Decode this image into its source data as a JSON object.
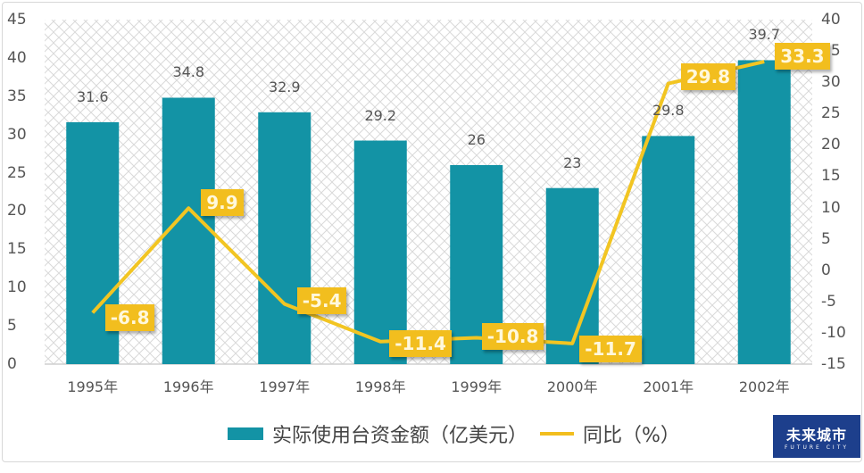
{
  "chart_data": {
    "type": "bar+line",
    "title": "",
    "categories": [
      "1995年",
      "1996年",
      "1997年",
      "1998年",
      "1999年",
      "2000年",
      "2001年",
      "2002年"
    ],
    "series": [
      {
        "name": "实际使用台资金额（亿美元）",
        "type": "bar",
        "axis": "left",
        "color": "#1393a5",
        "values": [
          31.6,
          34.8,
          32.9,
          29.2,
          26,
          23,
          29.8,
          39.7
        ]
      },
      {
        "name": "同比（%）",
        "type": "line",
        "axis": "right",
        "color": "#f2be1e",
        "values": [
          -6.8,
          9.9,
          -5.4,
          -11.4,
          -10.8,
          -11.7,
          29.8,
          33.3
        ]
      }
    ],
    "y_left": {
      "ticks": [
        "0",
        "5",
        "10",
        "15",
        "20",
        "25",
        "30",
        "35",
        "40",
        "45"
      ],
      "ylim": [
        0,
        45
      ]
    },
    "y_right": {
      "ticks": [
        "-15",
        "-10",
        "-5",
        "0",
        "5",
        "10",
        "15",
        "20",
        "25",
        "30",
        "35",
        "40"
      ],
      "ylim": [
        -15,
        40
      ]
    },
    "xlabel": "",
    "ylabel": "",
    "grid": false,
    "background_pattern": "crosshatch",
    "legend_position": "bottom"
  },
  "bar_labels": [
    "31.6",
    "34.8",
    "32.9",
    "29.2",
    "26",
    "23",
    "29.8",
    "39.7"
  ],
  "line_labels": [
    "-6.8",
    "9.9",
    "-5.4",
    "-11.4",
    "-10.8",
    "-11.7",
    "29.8",
    "33.3"
  ],
  "legend": {
    "bar": "实际使用台资金额（亿美元）",
    "line": "同比（%）"
  },
  "logo": {
    "title": "未来城市",
    "subtitle": "FUTURE CITY"
  }
}
